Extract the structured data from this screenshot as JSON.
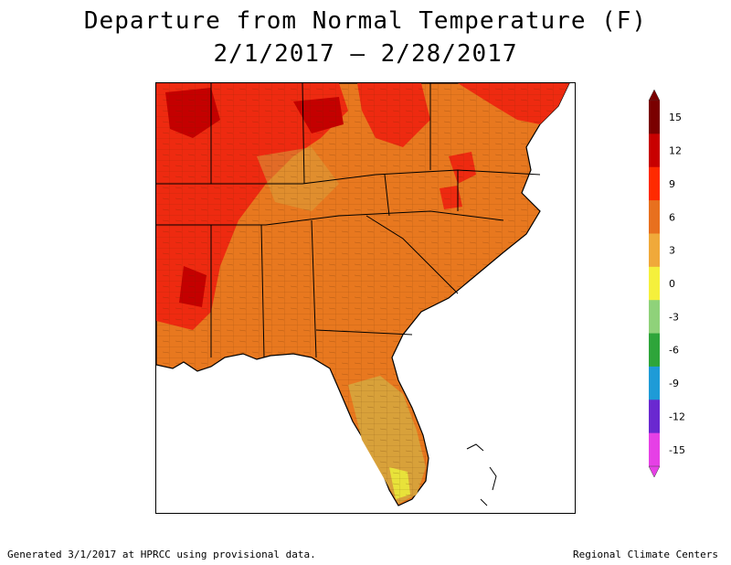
{
  "title": "Departure from Normal Temperature (F)",
  "subtitle": "2/1/2017 – 2/28/2017",
  "footer": {
    "left": "Generated 3/1/2017 at HPRCC using provisional data.",
    "right": "Regional Climate Centers"
  },
  "legend": {
    "ticks": [
      "15",
      "12",
      "9",
      "6",
      "3",
      "0",
      "-3",
      "-6",
      "-9",
      "-12",
      "-15"
    ],
    "colors": [
      "#7a0000",
      "#c80000",
      "#ff2a00",
      "#e8701e",
      "#f0a93a",
      "#f5f03c",
      "#8fd27a",
      "#2ea53a",
      "#1e9bd7",
      "#6a28d0",
      "#e640e6"
    ]
  },
  "map": {
    "land_color": "#e8781f",
    "water_color": "#ffffff",
    "border_color": "#000000"
  }
}
